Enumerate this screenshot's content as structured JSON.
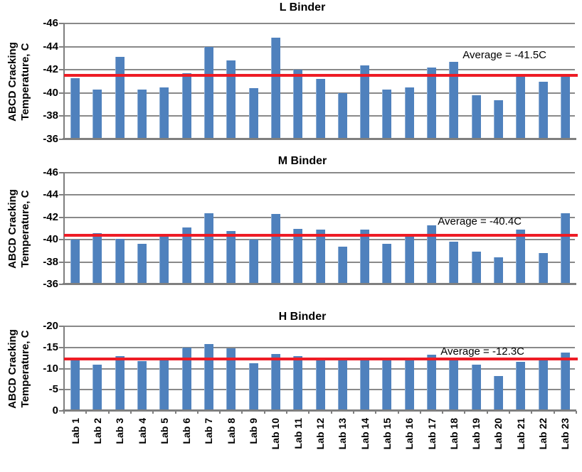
{
  "colors": {
    "bar": "#4f81bd",
    "gridline": "#898989",
    "axis": "#7f7f7f",
    "average_line": "#ee1c25",
    "text": "#000000"
  },
  "categories": [
    "Lab 1",
    "Lab 2",
    "Lab 3",
    "Lab 4",
    "Lab 5",
    "Lab 6",
    "Lab 7",
    "Lab 8",
    "Lab 9",
    "Lab 10",
    "Lab 11",
    "Lab 12",
    "Lab 13",
    "Lab 14",
    "Lab 15",
    "Lab 16",
    "Lab 17",
    "Lab 18",
    "Lab 19",
    "Lab 20",
    "Lab 21",
    "Lab 22",
    "Lab 23"
  ],
  "chart_data": [
    {
      "type": "bar",
      "title": "L Binder",
      "ylabel": "ABCD Cracking Temperature, C",
      "ylabel_lines": [
        "ABCD Cracking",
        "Temperature, C"
      ],
      "xlabel": "",
      "ylim": [
        -36,
        -46
      ],
      "yticks": [
        -46,
        -44,
        -42,
        -40,
        -38,
        -36
      ],
      "grid": true,
      "values": [
        -41.3,
        -40.3,
        -43.1,
        -40.3,
        -40.5,
        -41.7,
        -44.0,
        -42.8,
        -40.4,
        -44.8,
        -42.0,
        -41.2,
        -40.0,
        -42.4,
        -40.3,
        -40.5,
        -42.2,
        -42.7,
        -39.8,
        -39.4,
        -41.4,
        -41.0,
        -41.4
      ],
      "average": -41.5,
      "annotation": "Average = -41.5C"
    },
    {
      "type": "bar",
      "title": "M Binder",
      "ylabel": "ABCD Cracking Temperature, C",
      "ylabel_lines": [
        "ABCD Cracking",
        "Temperature, C"
      ],
      "xlabel": "",
      "ylim": [
        -36,
        -46
      ],
      "yticks": [
        -46,
        -44,
        -42,
        -40,
        -38,
        -36
      ],
      "grid": true,
      "values": [
        -40.0,
        -40.6,
        -40.1,
        -39.6,
        -40.3,
        -41.1,
        -42.4,
        -40.8,
        -40.0,
        -42.3,
        -41.0,
        -40.9,
        -39.4,
        -40.9,
        -39.6,
        -40.3,
        -41.3,
        -39.8,
        -38.9,
        -38.4,
        -40.9,
        -38.8,
        -42.4
      ],
      "average": -40.4,
      "annotation": "Average = -40.4C"
    },
    {
      "type": "bar",
      "title": "H Binder",
      "ylabel": "ABCD Cracking Temperature, C",
      "ylabel_lines": [
        "ABCD Cracking",
        "Temperature, C"
      ],
      "xlabel": "",
      "ylim": [
        0,
        -20
      ],
      "yticks": [
        -20,
        -15,
        -10,
        -5,
        0
      ],
      "grid": true,
      "values": [
        -12.0,
        -11.0,
        -13.0,
        -11.7,
        -12.0,
        -15.0,
        -15.8,
        -14.8,
        -11.3,
        -13.4,
        -13.0,
        -12.2,
        -12.2,
        -11.9,
        -12.2,
        -12.2,
        -13.2,
        -11.9,
        -10.9,
        -8.2,
        -11.6,
        -12.2,
        -13.7
      ],
      "average": -12.3,
      "annotation": "Average = -12.3C"
    }
  ]
}
